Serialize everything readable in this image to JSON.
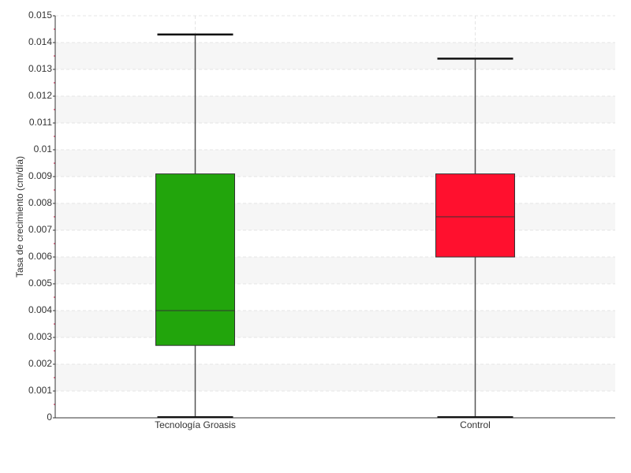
{
  "chart_data": {
    "type": "box",
    "y_label": "Tasa de crecimiento (cm/día)",
    "categories": [
      "Tecnología Groasis",
      "Control"
    ],
    "boxes": [
      {
        "min": 0,
        "q1": 0.0027,
        "median": 0.004,
        "q3": 0.0091,
        "max": 0.0143,
        "color": "#22a50c"
      },
      {
        "min": 0,
        "q1": 0.006,
        "median": 0.0075,
        "q3": 0.0091,
        "max": 0.0134,
        "color": "#ff102e"
      }
    ],
    "ylim": [
      0,
      0.015
    ],
    "yticks": [
      0,
      0.001,
      0.002,
      0.003,
      0.004,
      0.005,
      0.006,
      0.007,
      0.008,
      0.009,
      0.01,
      0.011,
      0.012,
      0.013,
      0.014,
      0.015
    ],
    "grid": true
  }
}
